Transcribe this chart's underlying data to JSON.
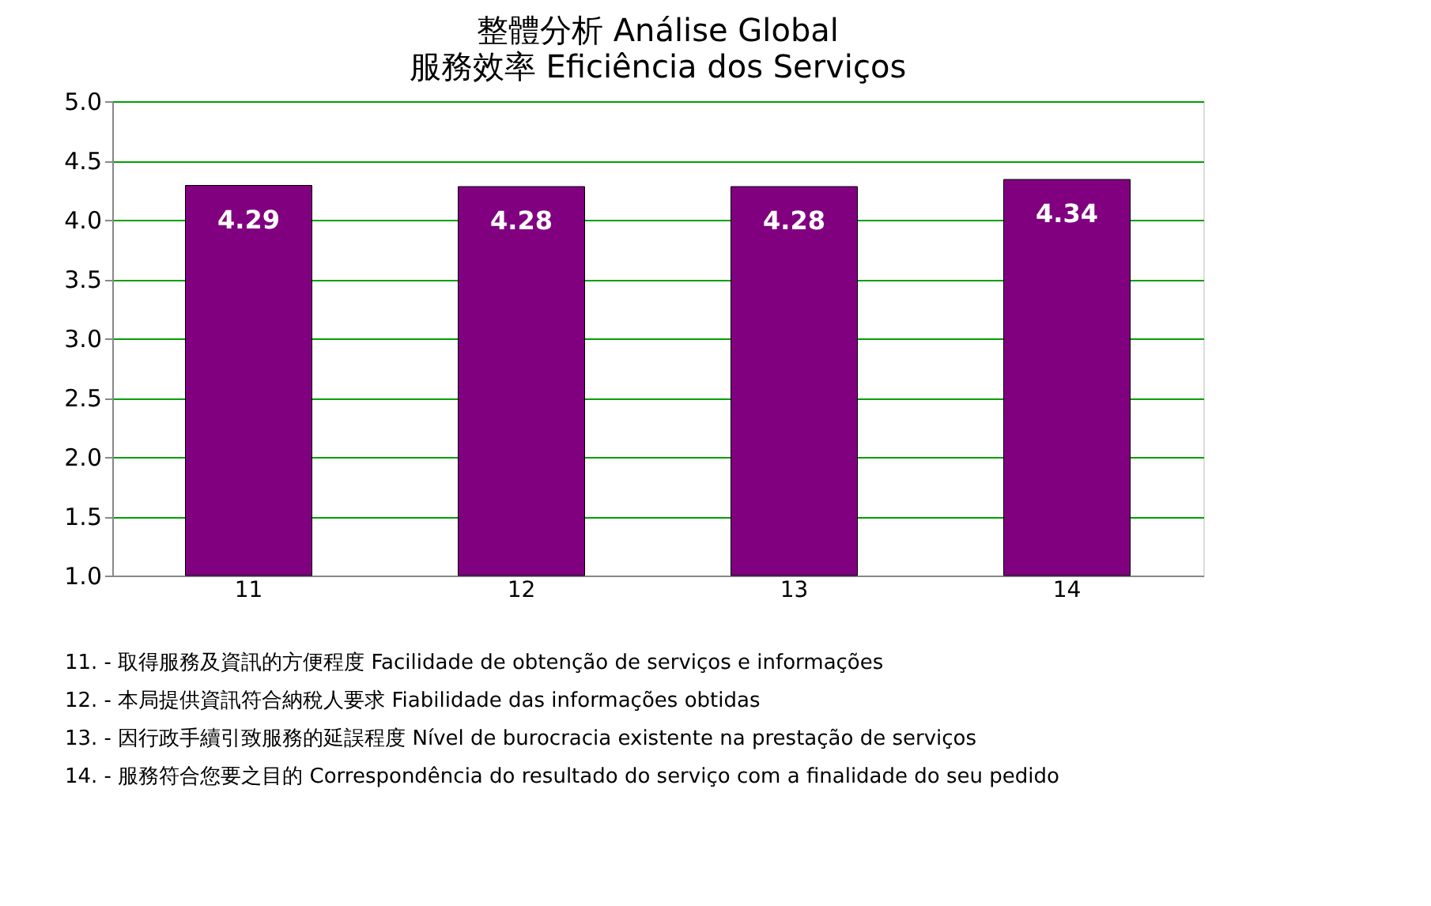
{
  "chart_data": {
    "type": "bar",
    "title": "整體分析 Análise Global",
    "subtitle": "服務效率 Eficiência dos Serviços",
    "categories": [
      "11",
      "12",
      "13",
      "14"
    ],
    "values": [
      4.29,
      4.28,
      4.28,
      4.34
    ],
    "color": "#800080",
    "ylim": [
      1.0,
      5.0
    ],
    "yticks": [
      {
        "value": 1.0,
        "label": "1.0"
      },
      {
        "value": 1.5,
        "label": "1.5"
      },
      {
        "value": 2.0,
        "label": "2.0"
      },
      {
        "value": 2.5,
        "label": "2.5"
      },
      {
        "value": 3.0,
        "label": "3.0"
      },
      {
        "value": 3.5,
        "label": "3.5"
      },
      {
        "value": 4.0,
        "label": "4.0"
      },
      {
        "value": 4.5,
        "label": "4.5"
      },
      {
        "value": 5.0,
        "label": "5.0"
      }
    ],
    "grid": "y",
    "data_labels": true,
    "annotations": [
      "11. - 取得服務及資訊的方便程度 Facilidade de obtenção de serviços e informações",
      "12. - 本局提供資訊符合納稅人要求 Fiabilidade das informações obtidas",
      "13. - 因行政手續引致服務的延誤程度 Nível de burocracia existente na prestação de serviços",
      "14. - 服務符合您要之目的 Correspondência do resultado do serviço com a finalidade do seu pedido"
    ]
  }
}
